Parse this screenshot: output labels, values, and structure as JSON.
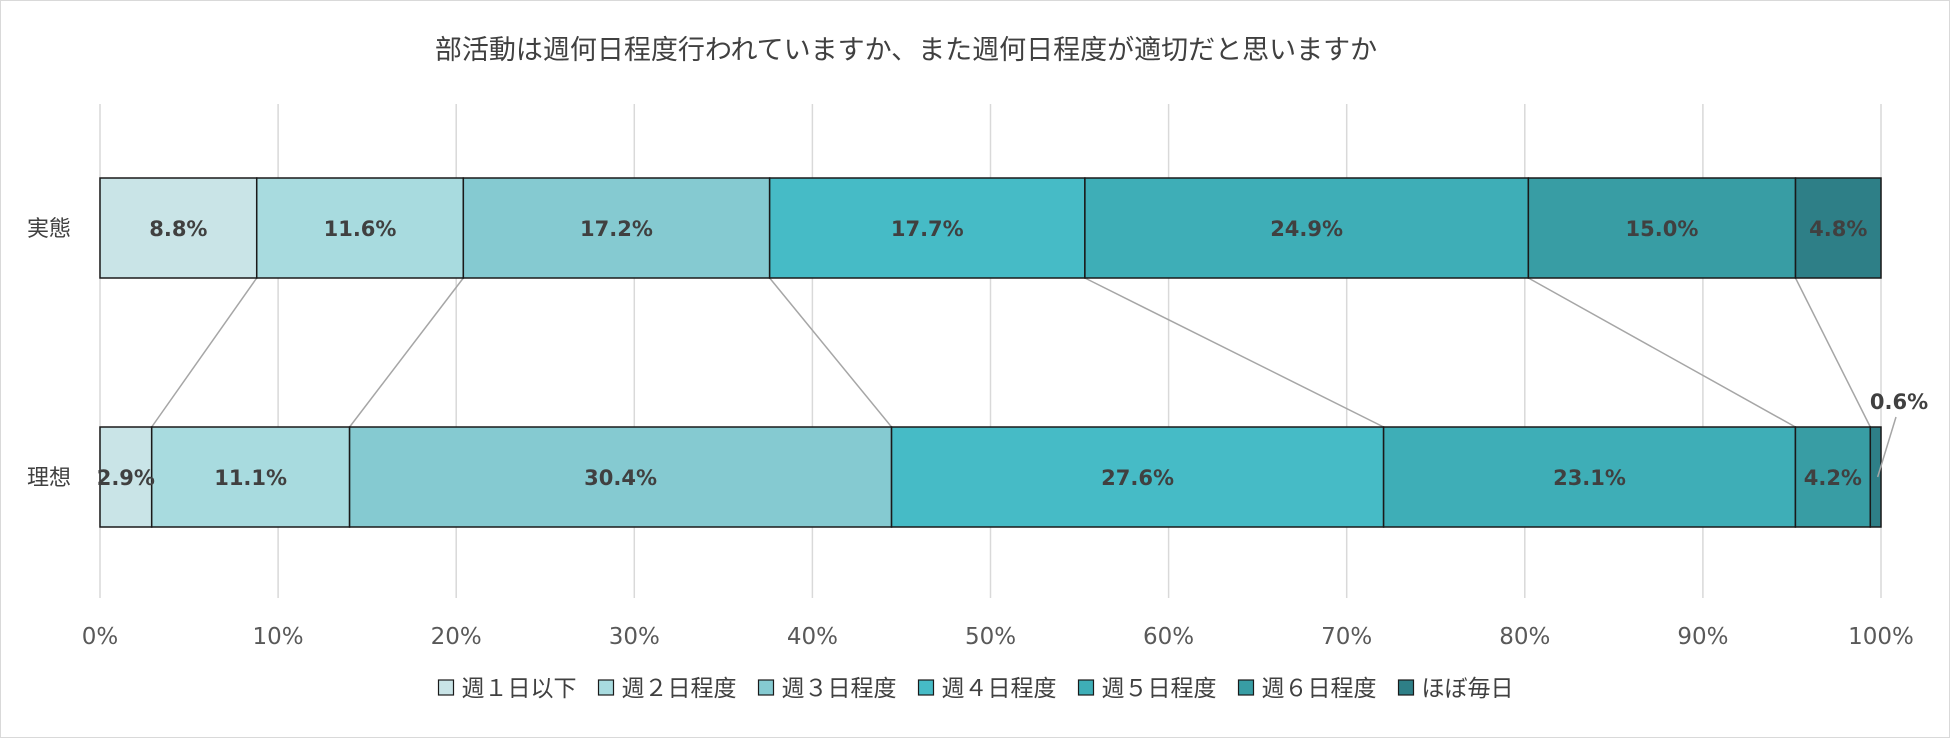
{
  "chart_data": {
    "type": "bar",
    "orientation": "horizontal",
    "stacked": "percent",
    "title": "部活動は週何日程度行われていますか、また週何日程度が適切だと思いますか",
    "xlabel": "",
    "ylabel": "",
    "xlim": [
      0,
      100
    ],
    "x_ticks": [
      "0%",
      "10%",
      "20%",
      "30%",
      "40%",
      "50%",
      "60%",
      "70%",
      "80%",
      "90%",
      "100%"
    ],
    "grid": "vertical",
    "legend_position": "bottom",
    "series_lines": true,
    "categories": [
      "実態",
      "理想"
    ],
    "series": [
      {
        "name": "週１日以下",
        "color": "#c9e4e7",
        "values": [
          8.8,
          2.9
        ],
        "labels": [
          "8.8%",
          "2.9%"
        ]
      },
      {
        "name": "週２日程度",
        "color": "#a8dbdf",
        "values": [
          11.6,
          11.1
        ],
        "labels": [
          "11.6%",
          "11.1%"
        ]
      },
      {
        "name": "週３日程度",
        "color": "#85cad1",
        "values": [
          17.2,
          30.4
        ],
        "labels": [
          "17.2%",
          "30.4%"
        ]
      },
      {
        "name": "週４日程度",
        "color": "#46bbc6",
        "values": [
          17.7,
          27.6
        ],
        "labels": [
          "17.7%",
          "27.6%"
        ]
      },
      {
        "name": "週５日程度",
        "color": "#3eaeb7",
        "values": [
          24.9,
          23.1
        ],
        "labels": [
          "24.9%",
          "23.1%"
        ]
      },
      {
        "name": "週６日程度",
        "color": "#389da4",
        "values": [
          15.0,
          4.2
        ],
        "labels": [
          "15.0%",
          "4.2%"
        ]
      },
      {
        "name": "ほぼ毎日",
        "color": "#2e7f87",
        "values": [
          4.8,
          0.6
        ],
        "labels": [
          "4.8%",
          "0.6%"
        ]
      }
    ]
  }
}
